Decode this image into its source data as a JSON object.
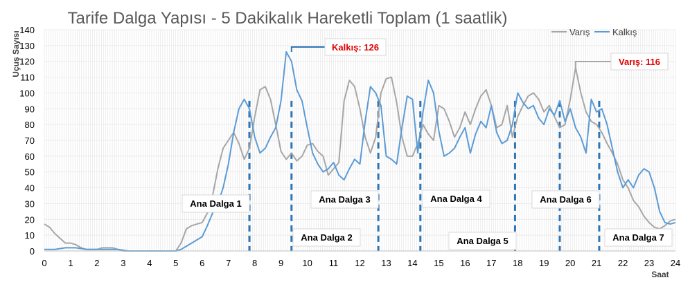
{
  "chart_data": {
    "type": "line",
    "title": "Tarife Dalga Yapısı - 5 Dakikalık Hareketli Toplam (1 saatlik)",
    "xlabel": "Saat",
    "ylabel": "Uçuş Sayısı",
    "xlim": [
      0,
      24
    ],
    "ylim": [
      0,
      140
    ],
    "x_ticks": [
      "0",
      "1",
      "2",
      "3",
      "4",
      "5",
      "6",
      "7",
      "8",
      "9",
      "10",
      "11",
      "12",
      "13",
      "14",
      "15",
      "16",
      "17",
      "18",
      "19",
      "20",
      "21",
      "22",
      "23",
      "24"
    ],
    "y_ticks": [
      "0",
      "10",
      "20",
      "30",
      "40",
      "50",
      "60",
      "70",
      "80",
      "90",
      "100",
      "110",
      "120",
      "130",
      "140"
    ],
    "grid": "vertical dense",
    "legend": "top-right",
    "colors": {
      "varis": "#a6a6a6",
      "kalkis": "#5b9bd5",
      "wave_line": "#2e75b6",
      "callout": "#e00000"
    },
    "series": [
      {
        "name": "Varış",
        "x": [
          0,
          0.2,
          0.4,
          0.6,
          0.8,
          1.0,
          1.2,
          1.4,
          1.6,
          1.8,
          2.0,
          2.2,
          2.4,
          2.6,
          2.8,
          3.0,
          3.2,
          3.4,
          3.6,
          3.8,
          4.0,
          4.2,
          4.4,
          4.6,
          4.8,
          5.0,
          5.2,
          5.4,
          5.6,
          5.8,
          6.0,
          6.2,
          6.4,
          6.6,
          6.8,
          7.0,
          7.2,
          7.4,
          7.6,
          7.8,
          8.0,
          8.2,
          8.4,
          8.6,
          8.8,
          9.0,
          9.2,
          9.4,
          9.6,
          9.8,
          10.0,
          10.2,
          10.4,
          10.6,
          10.8,
          11.0,
          11.2,
          11.4,
          11.6,
          11.8,
          12.0,
          12.2,
          12.4,
          12.6,
          12.8,
          13.0,
          13.2,
          13.4,
          13.6,
          13.8,
          14.0,
          14.2,
          14.4,
          14.6,
          14.8,
          15.0,
          15.2,
          15.4,
          15.6,
          15.8,
          16.0,
          16.2,
          16.4,
          16.6,
          16.8,
          17.0,
          17.2,
          17.4,
          17.6,
          17.8,
          18.0,
          18.2,
          18.4,
          18.6,
          18.8,
          19.0,
          19.2,
          19.4,
          19.6,
          19.8,
          20.0,
          20.2,
          20.4,
          20.6,
          20.8,
          21.0,
          21.2,
          21.4,
          21.6,
          21.8,
          22.0,
          22.2,
          22.4,
          22.6,
          22.8,
          23.0,
          23.2,
          23.4,
          23.6,
          23.8,
          24.0
        ],
        "y": [
          17,
          15,
          11,
          8,
          5,
          5,
          4,
          2,
          1,
          1,
          1,
          2,
          2,
          2,
          1,
          0,
          0,
          0,
          0,
          0,
          0,
          0,
          0,
          0,
          0,
          0,
          5,
          14,
          16,
          17,
          18,
          24,
          35,
          52,
          65,
          70,
          75,
          68,
          58,
          65,
          85,
          102,
          104,
          96,
          80,
          63,
          58,
          62,
          57,
          60,
          67,
          68,
          63,
          60,
          48,
          52,
          56,
          95,
          108,
          104,
          90,
          72,
          62,
          72,
          100,
          109,
          110,
          94,
          72,
          60,
          60,
          68,
          80,
          74,
          70,
          92,
          90,
          82,
          72,
          78,
          88,
          80,
          90,
          98,
          102,
          92,
          78,
          80,
          92,
          72,
          85,
          92,
          98,
          100,
          96,
          88,
          92,
          85,
          78,
          80,
          96,
          116,
          100,
          88,
          82,
          80,
          75,
          68,
          62,
          55,
          45,
          40,
          32,
          28,
          22,
          18,
          15,
          14,
          16,
          19,
          20
        ]
      },
      {
        "name": "Kalkış",
        "x": [
          0,
          0.4,
          0.8,
          1.2,
          1.6,
          2.0,
          2.4,
          2.8,
          3.2,
          3.6,
          4.0,
          4.4,
          4.8,
          5.0,
          5.2,
          5.4,
          5.6,
          5.8,
          6.0,
          6.2,
          6.4,
          6.6,
          6.8,
          7.0,
          7.2,
          7.4,
          7.6,
          7.8,
          8.0,
          8.2,
          8.4,
          8.6,
          8.8,
          9.0,
          9.2,
          9.4,
          9.6,
          9.8,
          10.0,
          10.2,
          10.4,
          10.6,
          10.8,
          11.0,
          11.2,
          11.4,
          11.6,
          11.8,
          12.0,
          12.2,
          12.4,
          12.6,
          12.8,
          13.0,
          13.2,
          13.4,
          13.6,
          13.8,
          14.0,
          14.2,
          14.4,
          14.6,
          14.8,
          15.0,
          15.2,
          15.4,
          15.6,
          15.8,
          16.0,
          16.2,
          16.4,
          16.6,
          16.8,
          17.0,
          17.2,
          17.4,
          17.6,
          17.8,
          18.0,
          18.2,
          18.4,
          18.6,
          18.8,
          19.0,
          19.2,
          19.4,
          19.6,
          19.8,
          20.0,
          20.2,
          20.4,
          20.6,
          20.8,
          21.0,
          21.2,
          21.4,
          21.6,
          21.8,
          22.0,
          22.2,
          22.4,
          22.6,
          22.8,
          23.0,
          23.2,
          23.4,
          23.6,
          23.8,
          24.0
        ],
        "y": [
          1,
          1,
          2,
          2,
          1,
          1,
          1,
          1,
          0,
          0,
          0,
          0,
          0,
          0,
          1,
          3,
          5,
          7,
          9,
          16,
          24,
          30,
          40,
          55,
          75,
          90,
          96,
          90,
          72,
          62,
          65,
          72,
          78,
          95,
          126,
          120,
          102,
          95,
          78,
          62,
          55,
          50,
          52,
          56,
          48,
          45,
          52,
          58,
          55,
          82,
          104,
          100,
          92,
          60,
          58,
          55,
          78,
          98,
          96,
          62,
          88,
          108,
          100,
          76,
          60,
          62,
          65,
          72,
          78,
          62,
          74,
          82,
          78,
          92,
          75,
          68,
          70,
          80,
          100,
          94,
          90,
          92,
          84,
          80,
          90,
          86,
          95,
          82,
          90,
          78,
          72,
          62,
          96,
          88,
          90,
          80,
          65,
          50,
          40,
          45,
          40,
          48,
          52,
          50,
          40,
          25,
          18,
          17,
          18
        ],
        "comment_end_x": "",
        "_x_note": ""
      }
    ],
    "annotations": [
      {
        "label": "Ana Dalga 1",
        "x": 7.8
      },
      {
        "label": "Ana Dalga 2",
        "x": 9.4
      },
      {
        "label": "Ana Dalga 3",
        "x": 12.7
      },
      {
        "label": "Ana Dalga 4",
        "x": 14.3
      },
      {
        "label": "Ana Dalga 5",
        "x": 17.9
      },
      {
        "label": "Ana Dalga 6",
        "x": 19.6
      },
      {
        "label": "Ana Dalga 7",
        "x": 21.1
      }
    ],
    "callouts": [
      {
        "label": "Kalkış: 126",
        "x": 9.4,
        "y": 126,
        "series": "Kalkış"
      },
      {
        "label": "Varış: 116",
        "x": 20.2,
        "y": 116,
        "series": "Varış"
      }
    ]
  }
}
